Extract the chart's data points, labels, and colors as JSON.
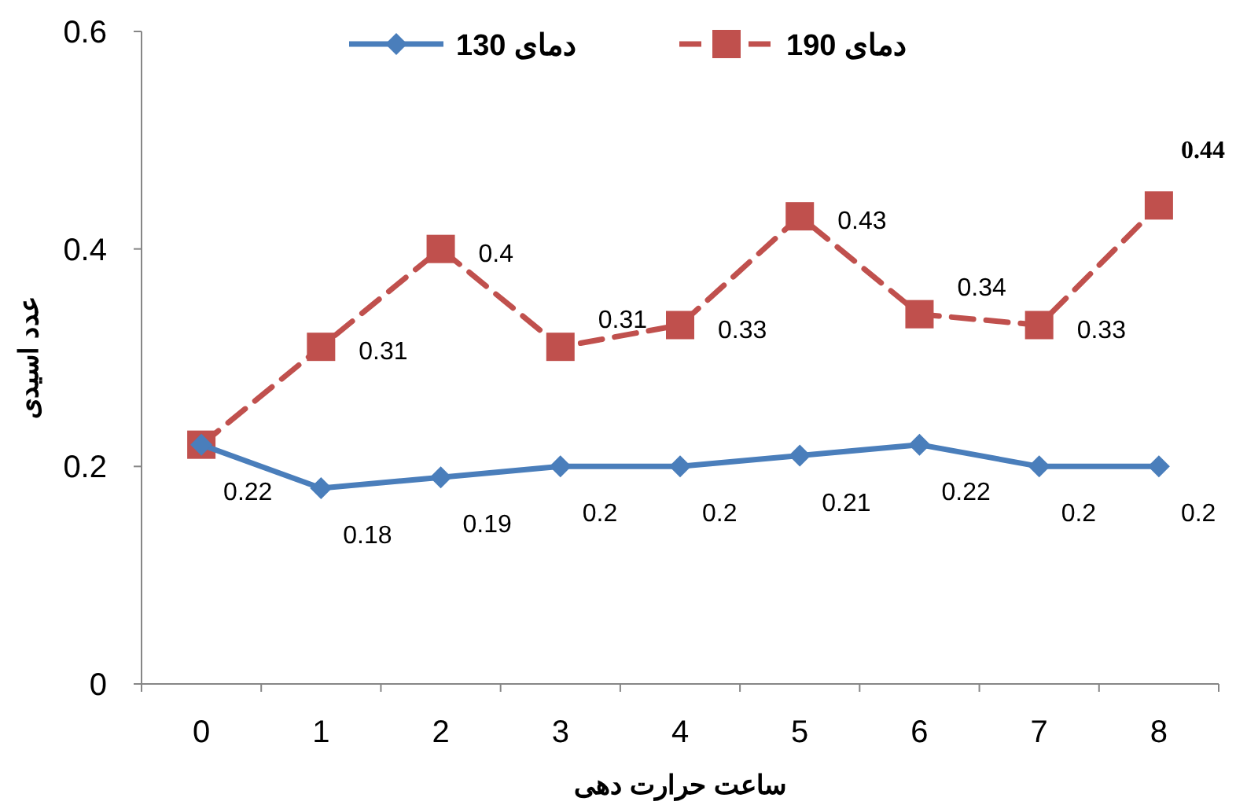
{
  "chart_data": {
    "type": "line",
    "xlabel": "ساعت حرارت دهی",
    "ylabel": "عدد اسیدی",
    "categories": [
      "0",
      "1",
      "2",
      "3",
      "4",
      "5",
      "6",
      "7",
      "8"
    ],
    "ylim": [
      0,
      0.6
    ],
    "yticks": [
      0,
      0.2,
      0.4,
      0.6
    ],
    "grid": false,
    "legend": "top",
    "series": [
      {
        "name": "دمای 130",
        "color": "#4a7ebb",
        "marker": "diamond",
        "line_style": "solid",
        "values": [
          0.22,
          0.18,
          0.19,
          0.2,
          0.2,
          0.21,
          0.22,
          0.2,
          0.2
        ],
        "value_labels": [
          "0.22",
          "0.18",
          "0.19",
          "0.2",
          "0.2",
          "0.21",
          "0.22",
          "0.2",
          "0.2"
        ]
      },
      {
        "name": "دمای 190",
        "color": "#c0504d",
        "marker": "square",
        "line_style": "dashed",
        "values": [
          0.22,
          0.31,
          0.4,
          0.31,
          0.33,
          0.43,
          0.34,
          0.33,
          0.44
        ],
        "value_labels": [
          null,
          "0.31",
          "0.4",
          "0.31",
          "0.33",
          "0.43",
          "0.34",
          "0.33",
          "0.44"
        ]
      }
    ]
  }
}
